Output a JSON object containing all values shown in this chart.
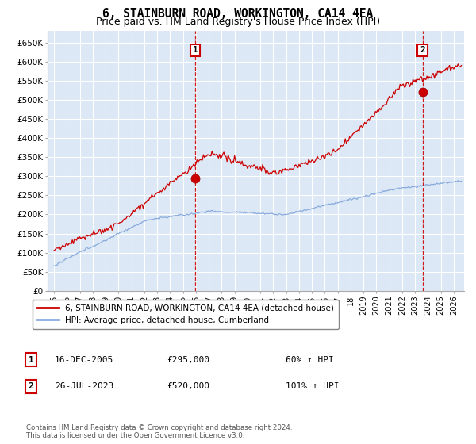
{
  "title": "6, STAINBURN ROAD, WORKINGTON, CA14 4EA",
  "subtitle": "Price paid vs. HM Land Registry's House Price Index (HPI)",
  "title_fontsize": 10.5,
  "subtitle_fontsize": 9,
  "ylim": [
    0,
    680000
  ],
  "yticks": [
    0,
    50000,
    100000,
    150000,
    200000,
    250000,
    300000,
    350000,
    400000,
    450000,
    500000,
    550000,
    600000,
    650000
  ],
  "ytick_labels": [
    "£0",
    "£50K",
    "£100K",
    "£150K",
    "£200K",
    "£250K",
    "£300K",
    "£350K",
    "£400K",
    "£450K",
    "£500K",
    "£550K",
    "£600K",
    "£650K"
  ],
  "xlim_start": 1994.5,
  "xlim_end": 2026.8,
  "sale1_x": 2005.96,
  "sale1_y": 295000,
  "sale2_x": 2023.57,
  "sale2_y": 520000,
  "sale1_date": "16-DEC-2005",
  "sale1_price": "£295,000",
  "sale1_hpi": "60% ↑ HPI",
  "sale2_date": "26-JUL-2023",
  "sale2_price": "£520,000",
  "sale2_hpi": "101% ↑ HPI",
  "line1_color": "#cc0000",
  "line2_color": "#88aadd",
  "background_color": "#dce8f5",
  "grid_color": "#ffffff",
  "legend1_label": "6, STAINBURN ROAD, WORKINGTON, CA14 4EA (detached house)",
  "legend2_label": "HPI: Average price, detached house, Cumberland",
  "footer": "Contains HM Land Registry data © Crown copyright and database right 2024.\nThis data is licensed under the Open Government Licence v3.0."
}
